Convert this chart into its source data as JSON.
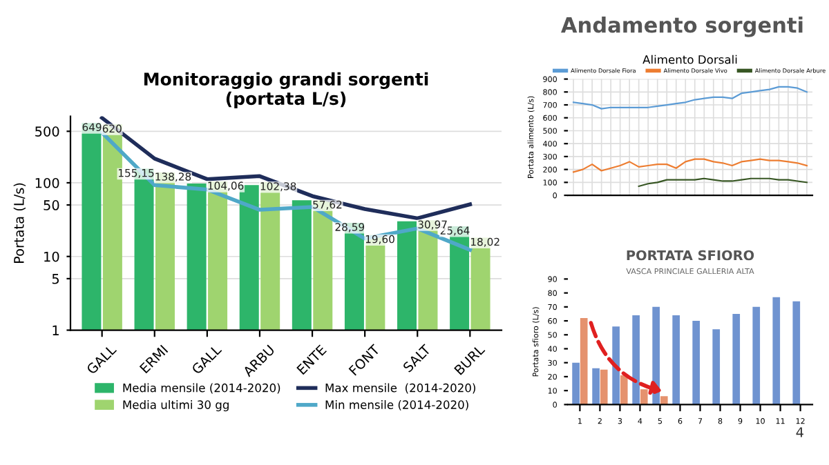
{
  "chart_data": [
    {
      "type": "bar",
      "title": "Monitoraggio grandi sorgenti\n(portata L/s)",
      "ylabel": "Portata (L/s)",
      "categories": [
        "GALL",
        "ERMI",
        "GALL",
        "ARBU",
        "ENTE",
        "FONT",
        "SALT",
        "BURL"
      ],
      "log": true,
      "ylim": [
        1,
        800
      ],
      "yticks": [
        1,
        5,
        10,
        50,
        100,
        500
      ],
      "grid": "y",
      "legend": "bottom",
      "annotations": [
        "Andamento sorgenti",
        "4"
      ],
      "series": [
        {
          "name": "Media mensile (2014-2020)",
          "type": "bar",
          "color": "#2db56a",
          "values": [
            649,
            155.15,
            98,
            93,
            58,
            28.59,
            30,
            25.64
          ],
          "value_labels": [
            "649",
            "155,15",
            null,
            null,
            null,
            "28,59",
            null,
            "25,64"
          ]
        },
        {
          "name": "Media ultimi 30 gg",
          "type": "bar",
          "color": "#9fd46f",
          "values": [
            620,
            138.28,
            104.06,
            102.38,
            57.62,
            19.6,
            30.97,
            18.02
          ],
          "value_labels": [
            "620",
            "138,28",
            "104,06",
            "102,38",
            "57,62",
            "19,60",
            "30,97",
            "18,02"
          ]
        },
        {
          "name": "Max mensile  (2014-2020)",
          "type": "line",
          "color": "#1f2d5a",
          "values": [
            760,
            213,
            112,
            123,
            66,
            44,
            33,
            51
          ]
        },
        {
          "name": "Min mensile (2014-2020)",
          "type": "line",
          "color": "#4fa8c8",
          "values": [
            480,
            93,
            81,
            43,
            47,
            17.5,
            24,
            12.3
          ]
        }
      ]
    },
    {
      "type": "line",
      "title": "Alimento Dorsali",
      "ylabel": "Portata alimento (L/s)",
      "categories": [
        null,
        null,
        null,
        null,
        null,
        null,
        null,
        null,
        null,
        null,
        null,
        null,
        null,
        null,
        null,
        null,
        null,
        null,
        null,
        null,
        null,
        null,
        null,
        null,
        null,
        null
      ],
      "ylim": [
        0,
        900
      ],
      "yticks": [
        0,
        100,
        200,
        300,
        400,
        500,
        600,
        700,
        800,
        900
      ],
      "grid": true,
      "legend": "top",
      "marker": "none",
      "series": [
        {
          "name": "Alimento Dorsale Fiora",
          "color": "#5b9bd5",
          "values": [
            720,
            710,
            700,
            670,
            680,
            680,
            680,
            680,
            680,
            690,
            700,
            710,
            720,
            740,
            750,
            760,
            760,
            750,
            790,
            800,
            810,
            820,
            840,
            840,
            830,
            800
          ]
        },
        {
          "name": "Alimento Dorsale Vivo",
          "color": "#ed7d31",
          "values": [
            180,
            200,
            240,
            190,
            210,
            230,
            260,
            220,
            230,
            240,
            240,
            210,
            260,
            280,
            280,
            260,
            250,
            230,
            260,
            270,
            280,
            270,
            270,
            260,
            250,
            230
          ]
        },
        {
          "name": "Alimento Dorsale Arbure",
          "color": "#375623",
          "values": [
            null,
            null,
            null,
            null,
            null,
            null,
            null,
            70,
            90,
            100,
            120,
            120,
            120,
            120,
            130,
            120,
            110,
            110,
            120,
            130,
            130,
            130,
            120,
            120,
            110,
            100
          ]
        }
      ]
    },
    {
      "type": "bar",
      "title": "PORTATA SFIORO",
      "subtitle": "VASCA PRINCIALE GALLERIA ALTA",
      "ylabel": "Portata sfioro (L/s)",
      "categories": [
        "1",
        "2",
        "3",
        "4",
        "5",
        "6",
        "7",
        "8",
        "9",
        "10",
        "11",
        "12"
      ],
      "ylim": [
        0,
        90
      ],
      "yticks": [
        0,
        10,
        20,
        30,
        40,
        50,
        60,
        70,
        80,
        90
      ],
      "grid": false,
      "series": [
        {
          "color": "#6f93d0",
          "values": [
            30,
            26,
            56,
            64,
            70,
            64,
            60,
            54,
            65,
            70,
            77,
            74
          ]
        },
        {
          "color": "#e5926e",
          "values": [
            62,
            25,
            21,
            11,
            6,
            null,
            null,
            null,
            null,
            null,
            null,
            null
          ]
        }
      ]
    }
  ]
}
